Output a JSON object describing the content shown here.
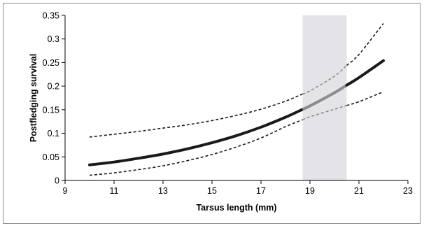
{
  "chart_data": {
    "type": "line",
    "title": "",
    "xlabel": "Tarsus length (mm)",
    "ylabel": "Postfledging survival",
    "xlim": [
      9,
      23
    ],
    "ylim": [
      0,
      0.35
    ],
    "xticks": [
      9,
      11,
      13,
      15,
      17,
      19,
      21,
      23
    ],
    "yticks": [
      0,
      0.05,
      0.1,
      0.15,
      0.2,
      0.25,
      0.3,
      0.35
    ],
    "xtick_labels": [
      "9",
      "11",
      "13",
      "15",
      "17",
      "19",
      "21",
      "23"
    ],
    "ytick_labels": [
      "0",
      "0.05",
      "0.1",
      "0.15",
      "0.2",
      "0.25",
      "0.3",
      "0.35"
    ],
    "grid": false,
    "legend": "none",
    "highlight_band": {
      "x": [
        18.7,
        20.5
      ],
      "color": "#e4e4e8"
    },
    "colors": {
      "estimate": "#1a1a1a",
      "estimate_in_band": "#8c8c8c",
      "ci": "#1a1a1a"
    },
    "x": [
      10,
      11,
      12,
      13,
      14,
      15,
      16,
      17,
      18,
      19,
      20,
      21,
      22
    ],
    "series": [
      {
        "role": "estimate",
        "values": [
          0.033,
          0.039,
          0.047,
          0.056,
          0.067,
          0.08,
          0.095,
          0.113,
          0.134,
          0.158,
          0.186,
          0.218,
          0.254
        ]
      },
      {
        "role": "upper-ci",
        "values": [
          0.092,
          0.098,
          0.104,
          0.111,
          0.118,
          0.127,
          0.138,
          0.151,
          0.168,
          0.19,
          0.221,
          0.267,
          0.333
        ]
      },
      {
        "role": "lower-ci",
        "values": [
          0.011,
          0.016,
          0.023,
          0.031,
          0.042,
          0.055,
          0.071,
          0.09,
          0.114,
          0.135,
          0.151,
          0.167,
          0.188
        ]
      }
    ]
  }
}
